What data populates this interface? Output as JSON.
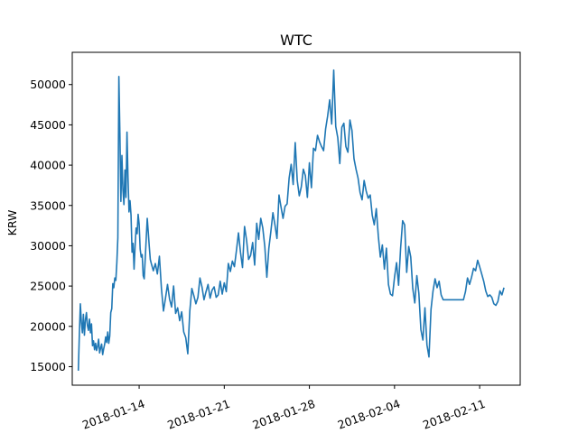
{
  "chart_data": {
    "type": "line",
    "title": "WTC",
    "xlabel": "",
    "ylabel": "KRW",
    "x_ticks": [
      "2018-01-14",
      "2018-01-21",
      "2018-01-28",
      "2018-02-04",
      "2018-02-11"
    ],
    "y_ticks": [
      15000,
      20000,
      25000,
      30000,
      35000,
      40000,
      45000,
      50000
    ],
    "xlim": [
      "2018-01-08T12:00",
      "2018-02-14T08:00"
    ],
    "ylim": [
      12700,
      54000
    ],
    "grid": false,
    "legend": "none",
    "line_color": "#1f77b4",
    "series": [
      {
        "x": [
          "2018-01-09T00:00",
          "2018-01-09T02:00",
          "2018-01-09T04:00",
          "2018-01-09T06:00",
          "2018-01-09T08:00",
          "2018-01-09T10:00",
          "2018-01-09T12:00",
          "2018-01-09T14:00",
          "2018-01-09T16:00",
          "2018-01-09T18:00",
          "2018-01-09T20:00",
          "2018-01-09T22:00",
          "2018-01-10T00:00",
          "2018-01-10T02:00",
          "2018-01-10T04:00",
          "2018-01-10T06:00",
          "2018-01-10T08:00",
          "2018-01-10T10:00",
          "2018-01-10T12:00",
          "2018-01-10T14:00",
          "2018-01-10T16:00",
          "2018-01-10T18:00",
          "2018-01-10T20:00",
          "2018-01-10T22:00",
          "2018-01-11T00:00",
          "2018-01-11T02:00",
          "2018-01-11T04:00",
          "2018-01-11T06:00",
          "2018-01-11T08:00",
          "2018-01-11T10:00",
          "2018-01-11T12:00",
          "2018-01-11T14:00",
          "2018-01-11T16:00",
          "2018-01-11T18:00",
          "2018-01-11T20:00",
          "2018-01-11T22:00",
          "2018-01-12T00:00",
          "2018-01-12T02:00",
          "2018-01-12T04:00",
          "2018-01-12T06:00",
          "2018-01-12T08:00",
          "2018-01-12T10:00",
          "2018-01-12T12:00",
          "2018-01-12T14:00",
          "2018-01-12T16:00",
          "2018-01-12T18:00",
          "2018-01-12T20:00",
          "2018-01-12T22:00",
          "2018-01-13T00:00",
          "2018-01-13T02:00",
          "2018-01-13T04:00",
          "2018-01-13T06:00",
          "2018-01-13T08:00",
          "2018-01-13T10:00",
          "2018-01-13T12:00",
          "2018-01-13T14:00",
          "2018-01-13T16:00",
          "2018-01-13T18:00",
          "2018-01-13T20:00",
          "2018-01-13T22:00",
          "2018-01-14T00:00",
          "2018-01-14T02:00",
          "2018-01-14T04:00",
          "2018-01-14T06:00",
          "2018-01-14T08:00",
          "2018-01-14T10:00",
          "2018-01-14T12:00",
          "2018-01-14T14:00",
          "2018-01-14T16:00",
          "2018-01-14T18:00",
          "2018-01-14T20:00",
          "2018-01-14T22:00",
          "2018-01-15T00:00",
          "2018-01-15T04:00",
          "2018-01-15T08:00",
          "2018-01-15T12:00",
          "2018-01-15T16:00",
          "2018-01-15T20:00",
          "2018-01-16T00:00",
          "2018-01-16T04:00",
          "2018-01-16T08:00",
          "2018-01-16T12:00",
          "2018-01-16T16:00",
          "2018-01-16T20:00",
          "2018-01-17T00:00",
          "2018-01-17T04:00",
          "2018-01-17T08:00",
          "2018-01-17T12:00",
          "2018-01-17T16:00",
          "2018-01-17T20:00",
          "2018-01-18T00:00",
          "2018-01-18T04:00",
          "2018-01-18T08:00",
          "2018-01-18T12:00",
          "2018-01-18T16:00",
          "2018-01-18T20:00",
          "2018-01-19T00:00",
          "2018-01-19T04:00",
          "2018-01-19T08:00",
          "2018-01-19T12:00",
          "2018-01-19T16:00",
          "2018-01-19T20:00",
          "2018-01-20T00:00",
          "2018-01-20T04:00",
          "2018-01-20T08:00",
          "2018-01-20T12:00",
          "2018-01-20T16:00",
          "2018-01-20T20:00",
          "2018-01-21T00:00",
          "2018-01-21T04:00",
          "2018-01-21T08:00",
          "2018-01-21T12:00",
          "2018-01-21T16:00",
          "2018-01-21T20:00",
          "2018-01-22T00:00",
          "2018-01-22T04:00",
          "2018-01-22T08:00",
          "2018-01-22T12:00",
          "2018-01-22T16:00",
          "2018-01-22T20:00",
          "2018-01-23T00:00",
          "2018-01-23T04:00",
          "2018-01-23T08:00",
          "2018-01-23T12:00",
          "2018-01-23T16:00",
          "2018-01-23T20:00",
          "2018-01-24T00:00",
          "2018-01-24T04:00",
          "2018-01-24T08:00",
          "2018-01-24T12:00",
          "2018-01-24T16:00",
          "2018-01-24T20:00",
          "2018-01-25T00:00",
          "2018-01-25T04:00",
          "2018-01-25T08:00",
          "2018-01-25T12:00",
          "2018-01-25T16:00",
          "2018-01-25T20:00",
          "2018-01-26T00:00",
          "2018-01-26T04:00",
          "2018-01-26T08:00",
          "2018-01-26T12:00",
          "2018-01-26T16:00",
          "2018-01-26T20:00",
          "2018-01-27T00:00",
          "2018-01-27T04:00",
          "2018-01-27T08:00",
          "2018-01-27T12:00",
          "2018-01-27T16:00",
          "2018-01-27T20:00",
          "2018-01-28T00:00",
          "2018-01-28T04:00",
          "2018-01-28T08:00",
          "2018-01-28T12:00",
          "2018-01-28T16:00",
          "2018-01-28T20:00",
          "2018-01-29T00:00",
          "2018-01-29T04:00",
          "2018-01-29T08:00",
          "2018-01-29T12:00",
          "2018-01-29T16:00",
          "2018-01-29T20:00",
          "2018-01-30T00:00",
          "2018-01-30T04:00",
          "2018-01-30T08:00",
          "2018-01-30T12:00",
          "2018-01-30T16:00",
          "2018-01-30T20:00",
          "2018-01-31T00:00",
          "2018-01-31T04:00",
          "2018-01-31T08:00",
          "2018-01-31T12:00",
          "2018-01-31T16:00",
          "2018-01-31T20:00",
          "2018-02-01T00:00",
          "2018-02-01T04:00",
          "2018-02-01T08:00",
          "2018-02-01T12:00",
          "2018-02-01T16:00",
          "2018-02-01T20:00",
          "2018-02-02T00:00",
          "2018-02-02T04:00",
          "2018-02-02T08:00",
          "2018-02-02T12:00",
          "2018-02-02T16:00",
          "2018-02-02T20:00",
          "2018-02-03T00:00",
          "2018-02-03T04:00",
          "2018-02-03T08:00",
          "2018-02-03T12:00",
          "2018-02-03T16:00",
          "2018-02-03T20:00",
          "2018-02-04T00:00",
          "2018-02-04T04:00",
          "2018-02-04T08:00",
          "2018-02-04T12:00",
          "2018-02-04T16:00",
          "2018-02-04T20:00",
          "2018-02-05T00:00",
          "2018-02-05T04:00",
          "2018-02-05T08:00",
          "2018-02-05T12:00",
          "2018-02-05T16:00",
          "2018-02-05T20:00",
          "2018-02-06T00:00",
          "2018-02-06T04:00",
          "2018-02-06T08:00",
          "2018-02-06T12:00",
          "2018-02-06T16:00",
          "2018-02-06T20:00",
          "2018-02-07T00:00",
          "2018-02-07T04:00",
          "2018-02-07T08:00",
          "2018-02-07T12:00",
          "2018-02-07T16:00",
          "2018-02-07T20:00",
          "2018-02-08T00:00",
          "2018-02-08T04:00",
          "2018-02-08T08:00",
          "2018-02-08T12:00",
          "2018-02-08T16:00",
          "2018-02-08T20:00",
          "2018-02-09T00:00",
          "2018-02-09T04:00",
          "2018-02-09T08:00",
          "2018-02-09T12:00",
          "2018-02-09T16:00",
          "2018-02-09T20:00",
          "2018-02-10T00:00",
          "2018-02-10T04:00",
          "2018-02-10T08:00",
          "2018-02-10T12:00",
          "2018-02-10T16:00",
          "2018-02-10T20:00",
          "2018-02-11T00:00",
          "2018-02-11T04:00",
          "2018-02-11T08:00",
          "2018-02-11T12:00",
          "2018-02-11T16:00",
          "2018-02-11T20:00",
          "2018-02-12T00:00",
          "2018-02-12T04:00",
          "2018-02-12T08:00",
          "2018-02-12T12:00",
          "2018-02-12T16:00",
          "2018-02-12T20:00",
          "2018-02-13T00:00"
        ],
        "y": [
          14500,
          19000,
          22800,
          20500,
          19200,
          21500,
          18900,
          20800,
          21700,
          20100,
          19500,
          20900,
          19200,
          20300,
          17600,
          18200,
          17100,
          17900,
          17000,
          17500,
          18400,
          16700,
          17300,
          17800,
          16500,
          17200,
          17800,
          18700,
          18000,
          19300,
          17900,
          18800,
          21700,
          22200,
          25300,
          24800,
          26000,
          25700,
          27900,
          31000,
          51000,
          44000,
          35500,
          41200,
          37000,
          35100,
          39400,
          36000,
          44100,
          38500,
          34200,
          35600,
          33800,
          29200,
          30300,
          27100,
          29900,
          32200,
          31500,
          33900,
          32700,
          29600,
          28600,
          28900,
          26300,
          25900,
          28400,
          30900,
          33400,
          31700,
          29900,
          28300,
          27800,
          26900,
          27800,
          26500,
          28700,
          24700,
          21900,
          23500,
          25200,
          23400,
          22400,
          25000,
          21600,
          22300,
          20700,
          21800,
          19300,
          18600,
          16600,
          21900,
          24700,
          23800,
          22800,
          23600,
          26000,
          24900,
          23300,
          24300,
          25200,
          23500,
          24500,
          24900,
          23600,
          23900,
          25600,
          24000,
          25400,
          24300,
          27800,
          26800,
          28100,
          27400,
          29400,
          31600,
          29200,
          27300,
          32400,
          30700,
          28300,
          28800,
          30400,
          27600,
          32800,
          30800,
          33400,
          32200,
          29900,
          26100,
          29700,
          31800,
          34100,
          32600,
          30900,
          36300,
          34800,
          33400,
          34900,
          35200,
          38400,
          40100,
          37600,
          42800,
          38100,
          36200,
          37300,
          39500,
          38700,
          36000,
          40300,
          37200,
          42100,
          41800,
          43700,
          42900,
          42300,
          41800,
          44500,
          46100,
          48100,
          45100,
          51800,
          44800,
          43400,
          40200,
          44700,
          45200,
          42300,
          41600,
          45600,
          44300,
          40800,
          39500,
          38400,
          36600,
          35700,
          38100,
          36800,
          35900,
          36300,
          33800,
          32600,
          34600,
          31200,
          28600,
          30100,
          27100,
          29700,
          25200,
          24000,
          23800,
          26100,
          27900,
          25100,
          29700,
          33100,
          32600,
          26700,
          29900,
          28600,
          24700,
          22900,
          26300,
          24100,
          19600,
          18300,
          22300,
          17700,
          16200,
          22100,
          24400,
          25900,
          24800,
          25600,
          23900,
          23300,
          23300,
          23300,
          23300,
          23300,
          23300,
          23300,
          23300,
          23300,
          23300,
          23300,
          24300,
          26000,
          25200,
          26100,
          27200,
          26900,
          28200,
          27400,
          26500,
          25600,
          24400,
          23700,
          23900,
          23600,
          22800,
          22600,
          23100,
          24400,
          23900,
          24800
        ]
      }
    ]
  }
}
